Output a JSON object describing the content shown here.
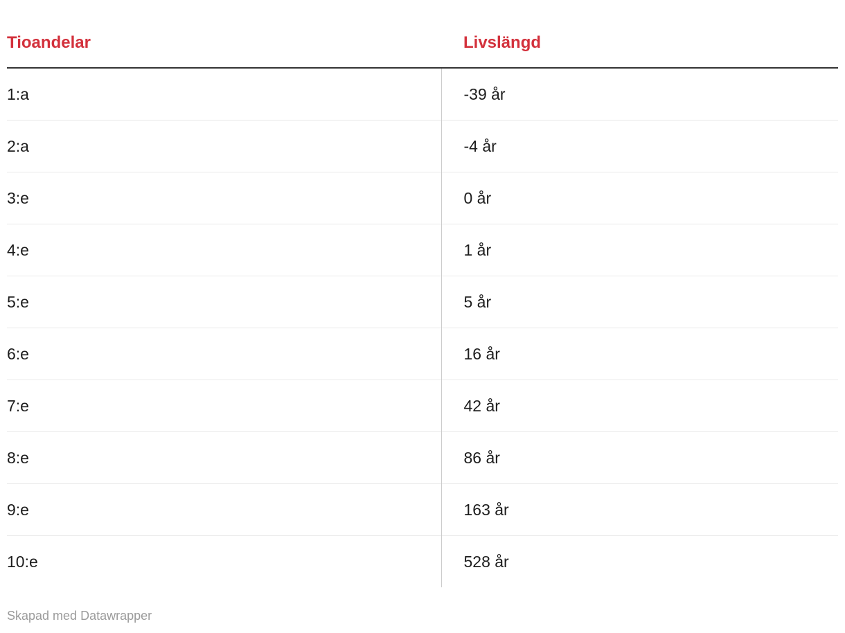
{
  "table": {
    "columns": [
      {
        "label": "Tioandelar"
      },
      {
        "label": "Livslängd"
      }
    ],
    "rows": [
      {
        "decile": "1:a",
        "lifespan": "-39 år"
      },
      {
        "decile": "2:a",
        "lifespan": "-4 år"
      },
      {
        "decile": "3:e",
        "lifespan": "0 år"
      },
      {
        "decile": "4:e",
        "lifespan": "1 år"
      },
      {
        "decile": "5:e",
        "lifespan": "5 år"
      },
      {
        "decile": "6:e",
        "lifespan": "16 år"
      },
      {
        "decile": "7:e",
        "lifespan": "42 år"
      },
      {
        "decile": "8:e",
        "lifespan": "86 år"
      },
      {
        "decile": "9:e",
        "lifespan": "163 år"
      },
      {
        "decile": "10:e",
        "lifespan": "528 år"
      }
    ]
  },
  "footer": {
    "credit": "Skapad med Datawrapper"
  },
  "colors": {
    "header_red": "#d3313c",
    "header_rule_dark": "#333333",
    "row_separator": "#e9e9e9",
    "column_divider": "#cccccc",
    "footer_gray": "#9b9b9b",
    "text": "#1d1d1d"
  },
  "chart_data": {
    "type": "table",
    "title": "",
    "columns": [
      "Tioandelar",
      "Livslängd"
    ],
    "categories": [
      "1:a",
      "2:a",
      "3:e",
      "4:e",
      "5:e",
      "6:e",
      "7:e",
      "8:e",
      "9:e",
      "10:e"
    ],
    "values": [
      -39,
      -4,
      0,
      1,
      5,
      16,
      42,
      86,
      163,
      528
    ],
    "value_labels": [
      "-39 år",
      "-4 år",
      "0 år",
      "1 år",
      "5 år",
      "16 år",
      "42 år",
      "86 år",
      "163 år",
      "528 år"
    ],
    "value_unit": "år",
    "grid": "horizontal-row-separators",
    "credit": "Skapad med Datawrapper"
  }
}
